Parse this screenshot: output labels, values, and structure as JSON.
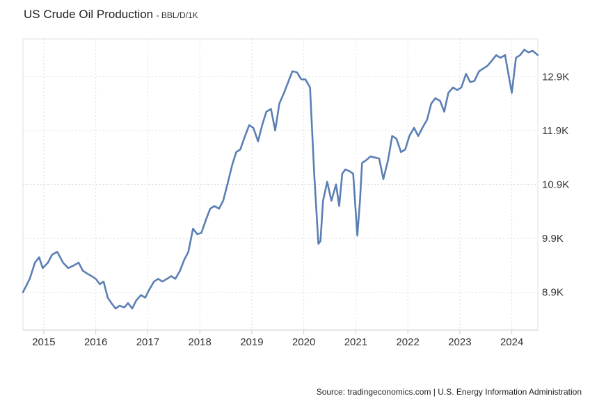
{
  "title": "US Crude Oil Production",
  "unit_label": "- BBL/D/1K",
  "source": "Source: tradingeconomics.com | U.S. Energy Information Administration",
  "chart_data": {
    "type": "line",
    "title": "US Crude Oil Production",
    "ylabel": "BBL/D/1K",
    "xlabel": "",
    "color": "#5b7fb4",
    "grid": true,
    "ylim": [
      8200,
      13600
    ],
    "xlim": [
      2014.6,
      2024.5
    ],
    "y_ticks": [
      8900,
      9900,
      10900,
      11900,
      12900
    ],
    "y_tick_labels": [
      "8.9K",
      "9.9K",
      "10.9K",
      "11.9K",
      "12.9K"
    ],
    "x_ticks": [
      2015,
      2016,
      2017,
      2018,
      2019,
      2020,
      2021,
      2022,
      2023,
      2024
    ],
    "x_tick_labels": [
      "2015",
      "2016",
      "2017",
      "2018",
      "2019",
      "2020",
      "2021",
      "2022",
      "2023",
      "2024"
    ],
    "series": [
      {
        "x": [
          2014.6,
          2014.73,
          2014.83,
          2014.91,
          2014.98,
          2015.08,
          2015.16,
          2015.26,
          2015.37,
          2015.47,
          2015.58,
          2015.67,
          2015.75,
          2015.83,
          2015.92,
          2016.0,
          2016.08,
          2016.15,
          2016.23,
          2016.3,
          2016.38,
          2016.46,
          2016.55,
          2016.62,
          2016.7,
          2016.78,
          2016.87,
          2016.95,
          2017.03,
          2017.12,
          2017.2,
          2017.28,
          2017.37,
          2017.45,
          2017.53,
          2017.62,
          2017.7,
          2017.78,
          2017.87,
          2017.95,
          2018.03,
          2018.12,
          2018.2,
          2018.28,
          2018.37,
          2018.45,
          2018.53,
          2018.62,
          2018.7,
          2018.78,
          2018.87,
          2018.95,
          2019.03,
          2019.12,
          2019.2,
          2019.28,
          2019.37,
          2019.45,
          2019.53,
          2019.62,
          2019.7,
          2019.78,
          2019.87,
          2019.95,
          2020.03,
          2020.12,
          2020.2,
          2020.28,
          2020.32,
          2020.37,
          2020.45,
          2020.53,
          2020.62,
          2020.68,
          2020.74,
          2020.8,
          2020.87,
          2020.95,
          2021.03,
          2021.08,
          2021.12,
          2021.2,
          2021.28,
          2021.37,
          2021.45,
          2021.53,
          2021.62,
          2021.7,
          2021.78,
          2021.87,
          2021.95,
          2022.03,
          2022.12,
          2022.2,
          2022.28,
          2022.37,
          2022.45,
          2022.53,
          2022.62,
          2022.7,
          2022.78,
          2022.87,
          2022.95,
          2023.03,
          2023.12,
          2023.2,
          2023.28,
          2023.37,
          2023.45,
          2023.53,
          2023.62,
          2023.7,
          2023.78,
          2023.87,
          2024.0,
          2024.08,
          2024.16,
          2024.24,
          2024.32,
          2024.4,
          2024.5
        ],
        "y": [
          8900,
          9150,
          9450,
          9550,
          9350,
          9450,
          9600,
          9650,
          9450,
          9350,
          9400,
          9450,
          9300,
          9250,
          9200,
          9150,
          9050,
          9100,
          8800,
          8700,
          8600,
          8650,
          8620,
          8700,
          8600,
          8750,
          8850,
          8800,
          8950,
          9100,
          9150,
          9100,
          9150,
          9200,
          9150,
          9300,
          9500,
          9650,
          10080,
          9980,
          10000,
          10250,
          10450,
          10500,
          10450,
          10600,
          10900,
          11250,
          11500,
          11550,
          11800,
          12000,
          11950,
          11700,
          12000,
          12250,
          12300,
          11900,
          12400,
          12600,
          12800,
          13000,
          12980,
          12850,
          12850,
          12700,
          11100,
          9800,
          9850,
          10600,
          10950,
          10600,
          10900,
          10500,
          11100,
          11180,
          11150,
          11100,
          9950,
          10600,
          11300,
          11350,
          11420,
          11400,
          11380,
          11000,
          11350,
          11800,
          11750,
          11500,
          11550,
          11800,
          11950,
          11800,
          11950,
          12100,
          12400,
          12500,
          12450,
          12250,
          12600,
          12700,
          12650,
          12700,
          12950,
          12800,
          12820,
          13000,
          13050,
          13100,
          13200,
          13300,
          13250,
          13300,
          12600,
          13250,
          13300,
          13400,
          13350,
          13380,
          13300
        ]
      }
    ]
  }
}
